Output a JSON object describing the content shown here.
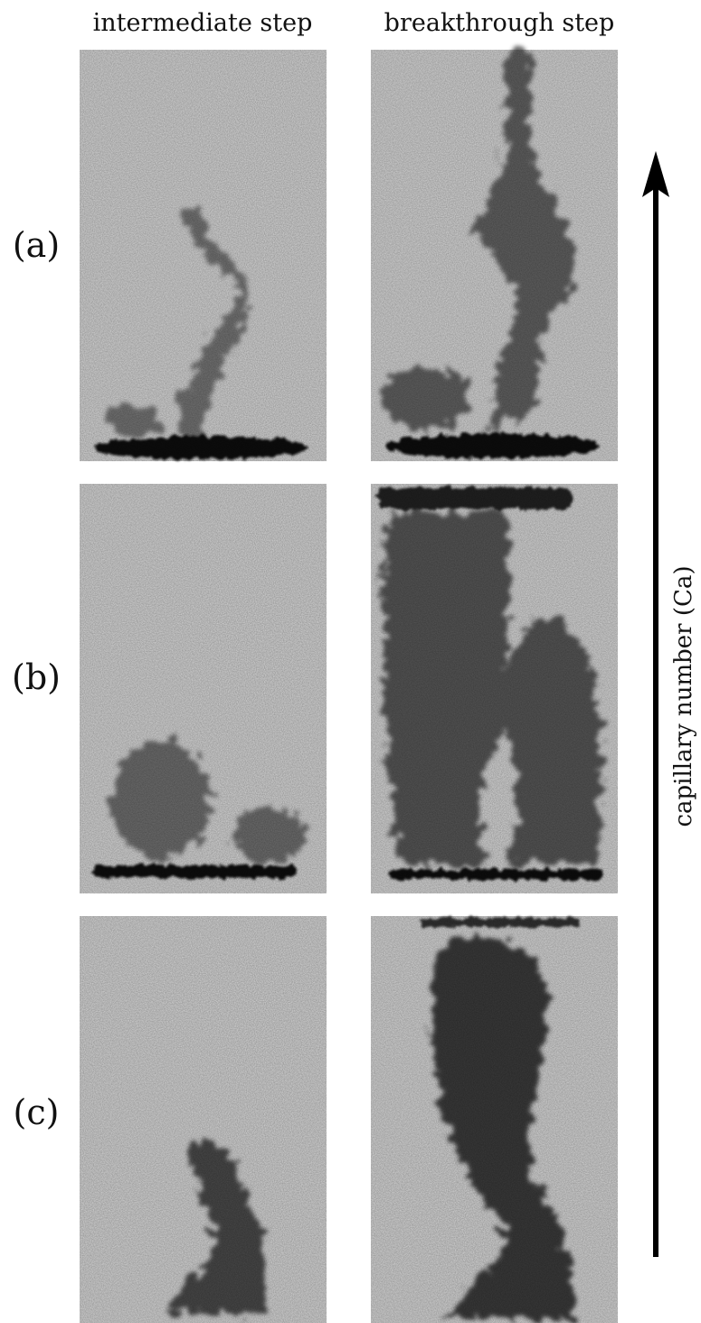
{
  "header": {
    "columns": [
      "intermediate step",
      "breakthrough step"
    ]
  },
  "rows": [
    {
      "label": "(a)"
    },
    {
      "label": "(b)"
    },
    {
      "label": "(c)"
    }
  ],
  "axis": {
    "label": "capillary number (Ca)"
  }
}
